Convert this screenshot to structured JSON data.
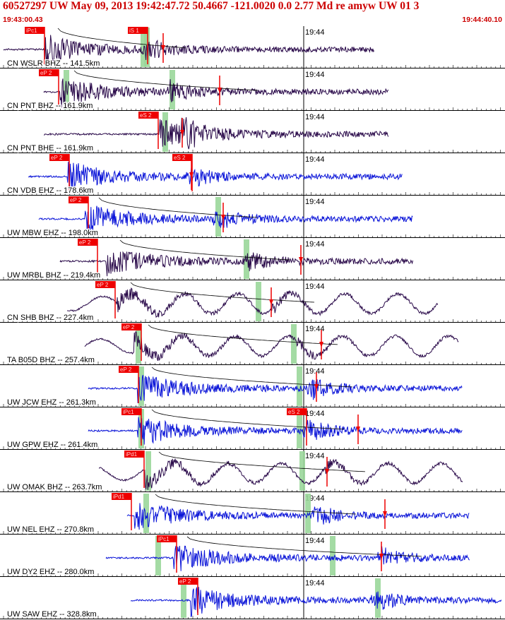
{
  "header": {
    "title": "60527297 UW May 09, 2013 19:42:47.72    50.4667 -121.0020  0.0 2.77 Md re amyw UW 01   3",
    "start_time": "19:43:00.43",
    "end_time": "19:44:40.10"
  },
  "minute_mark": "19:44",
  "colors": {
    "trace_broadband": "#2a0a4a",
    "trace_shortperiod": "#0a14d8",
    "pick": "#ee0000",
    "window": "#9ad79a",
    "background": "#ffffff"
  },
  "traces": [
    {
      "label": "CN WSLR BHZ -- 141.5km",
      "picks": [
        "iPc1",
        "iS 1"
      ],
      "kind": "bb"
    },
    {
      "label": "CN PNT BHZ -- 161.9km",
      "picks": [
        "eP 2"
      ],
      "kind": "bb"
    },
    {
      "label": "CN PNT BHE -- 161.9km",
      "picks": [
        "eS 2"
      ],
      "kind": "bb"
    },
    {
      "label": "CN VDB EHZ -- 178.6km",
      "picks": [
        "eP 2",
        "eS 2"
      ],
      "kind": "sp"
    },
    {
      "label": "UW MBW EHZ -- 198.0km",
      "picks": [
        "eP 2"
      ],
      "kind": "sp"
    },
    {
      "label": "UW MRBL BHZ -- 219.4km",
      "picks": [
        "eP 2"
      ],
      "kind": "bb"
    },
    {
      "label": "CN SHB BHZ -- 227.4km",
      "picks": [
        "eP 2"
      ],
      "kind": "bb"
    },
    {
      "label": "TA B05D BHZ -- 257.4km",
      "picks": [
        "eP 2"
      ],
      "kind": "bb"
    },
    {
      "label": "UW JCW EHZ -- 261.3km",
      "picks": [
        "eP 2"
      ],
      "kind": "sp"
    },
    {
      "label": "UW GPW EHZ -- 261.4km",
      "picks": [
        "iPc1",
        "eS 2"
      ],
      "kind": "sp"
    },
    {
      "label": "UW OMAK BHZ -- 263.7km",
      "picks": [
        "iPd1"
      ],
      "kind": "bb"
    },
    {
      "label": "UW NEL EHZ -- 270.8km",
      "picks": [
        "iPd1"
      ],
      "kind": "sp"
    },
    {
      "label": "UW DY2 EHZ -- 280.0km",
      "picks": [
        "iPc1"
      ],
      "kind": "sp"
    },
    {
      "label": "UW SAW EHZ -- 328.8km",
      "picks": [
        "eP 2"
      ],
      "kind": "sp"
    }
  ]
}
